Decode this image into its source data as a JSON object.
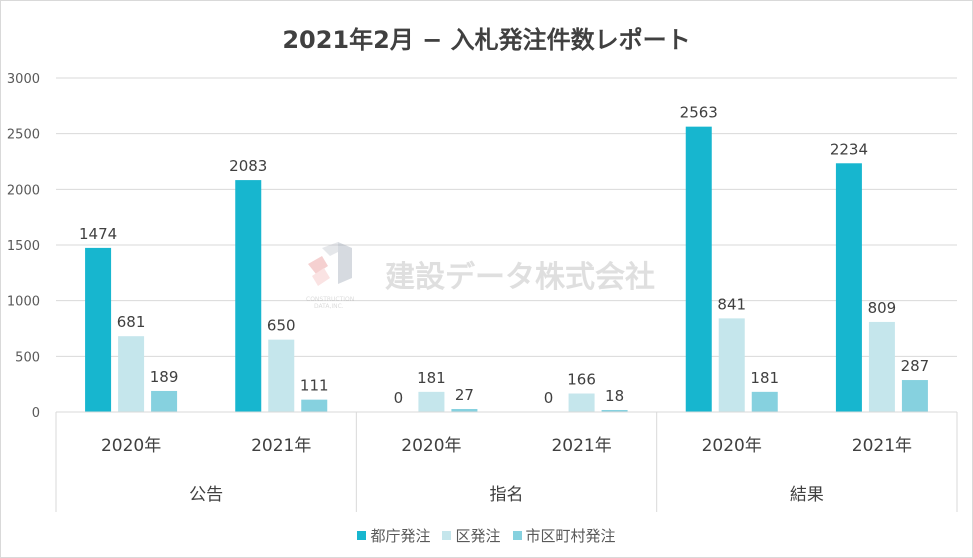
{
  "chart_data": {
    "type": "bar",
    "title": "2021年2月 − 入札発注件数レポート",
    "groups": [
      "公告",
      "指名",
      "結果"
    ],
    "categories": [
      "2020年",
      "2021年",
      "2020年",
      "2021年",
      "2020年",
      "2021年"
    ],
    "series": [
      {
        "name": "都庁発注",
        "color": "#17b6cf",
        "values": [
          1474,
          2083,
          0,
          0,
          2563,
          2234
        ]
      },
      {
        "name": "区発注",
        "color": "#c5e6ec",
        "values": [
          681,
          650,
          181,
          166,
          841,
          809
        ]
      },
      {
        "name": "市区町村発注",
        "color": "#86d1df",
        "values": [
          189,
          111,
          27,
          18,
          181,
          287
        ]
      }
    ],
    "yticks": [
      0,
      500,
      1000,
      1500,
      2000,
      2500,
      3000
    ],
    "ylim": [
      0,
      3000
    ],
    "grid": true,
    "legend": "bottom"
  },
  "watermark": {
    "text": "建設データ株式会社",
    "sub1": "CONSTRUCTION",
    "sub2": "DATA,INC."
  }
}
